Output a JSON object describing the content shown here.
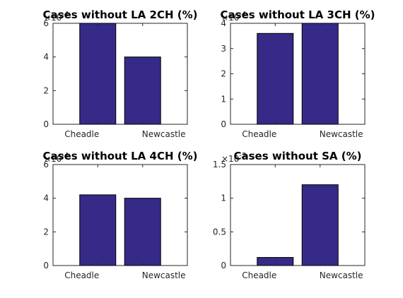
{
  "chart_data": [
    {
      "type": "bar",
      "title": "Cases without LA 2CH (%)",
      "categories": [
        "Cheadle",
        "Newcastle"
      ],
      "values": [
        0.0006,
        0.0004
      ],
      "ylim": [
        0,
        0.0006
      ],
      "yticks": [
        "0",
        "2",
        "4",
        "6"
      ],
      "yexponent": "-4",
      "grid": false
    },
    {
      "type": "bar",
      "title": "Cases without LA 3CH (%)",
      "categories": [
        "Cheadle",
        "Newcastle"
      ],
      "values": [
        0.00036,
        0.0004
      ],
      "ylim": [
        0,
        0.0004
      ],
      "yticks": [
        "0",
        "1",
        "2",
        "3",
        "4"
      ],
      "yexponent": "-4",
      "grid": false
    },
    {
      "type": "bar",
      "title": "Cases without LA 4CH (%)",
      "categories": [
        "Cheadle",
        "Newcastle"
      ],
      "values": [
        0.00042,
        0.0004
      ],
      "ylim": [
        0,
        0.0006
      ],
      "yticks": [
        "0",
        "2",
        "4",
        "6"
      ],
      "yexponent": "-4",
      "grid": false
    },
    {
      "type": "bar",
      "title": "Cases without SA (%)",
      "categories": [
        "Cheadle",
        "Newcastle"
      ],
      "values": [
        0.00012,
        0.0012
      ],
      "ylim": [
        0,
        0.0015
      ],
      "yticks": [
        "0",
        "0.5",
        "1",
        "1.5"
      ],
      "yexponent": "-3",
      "grid": false
    }
  ],
  "colors": {
    "bar": "#352a87",
    "axis": "#262626"
  }
}
